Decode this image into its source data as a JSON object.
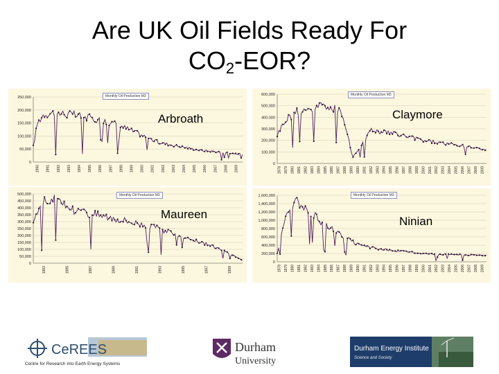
{
  "title": {
    "main": "Are UK Oil Fields Ready For",
    "line2_prefix": "CO",
    "line2_sub": "2",
    "line2_suffix": "-EOR?"
  },
  "charts": [
    {
      "id": "arbroath",
      "field": "Arbroath",
      "legend": "Monthly Oil Production M3",
      "type": "line",
      "ylim": [
        0,
        250000
      ],
      "yticks": [
        "250,000",
        "200,000",
        "150,000",
        "100,000",
        "50,000",
        "0"
      ],
      "xticks": [
        "1990",
        "1991",
        "1992",
        "1993",
        "1994",
        "1995",
        "1996",
        "1997",
        "1998",
        "1999",
        "2000",
        "2001",
        "2002",
        "2003",
        "2004",
        "2005",
        "2006",
        "2007",
        "2008",
        "2009"
      ],
      "trend": [
        [
          0,
          60000
        ],
        [
          0.02,
          150000
        ],
        [
          0.05,
          185000
        ],
        [
          0.1,
          190000
        ],
        [
          0.2,
          180000
        ],
        [
          0.3,
          165000
        ],
        [
          0.4,
          145000
        ],
        [
          0.5,
          110000
        ],
        [
          0.6,
          75000
        ],
        [
          0.7,
          60000
        ],
        [
          0.8,
          45000
        ],
        [
          0.9,
          38000
        ],
        [
          1,
          30000
        ]
      ]
    },
    {
      "id": "claymore",
      "field": "Claymore",
      "legend": "Monthly Oil Production M3",
      "type": "line",
      "ylim": [
        0,
        600000
      ],
      "yticks": [
        "600,000",
        "500,000",
        "400,000",
        "300,000",
        "200,000",
        "100,000",
        "0"
      ],
      "xticks": [
        "1978",
        "1979",
        "1980",
        "1981",
        "1982",
        "1983",
        "1984",
        "1985",
        "1986",
        "1987",
        "1988",
        "1989",
        "1990",
        "1991",
        "1992",
        "1993",
        "1994",
        "1995",
        "1996",
        "1997",
        "1998",
        "1999",
        "2000",
        "2001",
        "2002",
        "2003",
        "2004",
        "2005",
        "2006",
        "2007",
        "2008",
        "2009"
      ],
      "trend": [
        [
          0,
          250000
        ],
        [
          0.04,
          380000
        ],
        [
          0.1,
          450000
        ],
        [
          0.2,
          500000
        ],
        [
          0.3,
          470000
        ],
        [
          0.33,
          300000
        ],
        [
          0.36,
          50000
        ],
        [
          0.4,
          160000
        ],
        [
          0.45,
          290000
        ],
        [
          0.55,
          260000
        ],
        [
          0.7,
          200000
        ],
        [
          0.85,
          160000
        ],
        [
          1,
          120000
        ]
      ]
    },
    {
      "id": "maureen",
      "field": "Maureen",
      "legend": "Monthly Oil Production M3",
      "type": "line",
      "ylim": [
        0,
        500000
      ],
      "yticks": [
        "500,000",
        "450,000",
        "400,000",
        "350,000",
        "300,000",
        "250,000",
        "200,000",
        "150,000",
        "100,000",
        "50,000",
        "0"
      ],
      "xticks": [
        "1983",
        "1985",
        "1987",
        "1989",
        "1991",
        "1993",
        "1995",
        "1997",
        "1999"
      ],
      "trend": [
        [
          0,
          300000
        ],
        [
          0.04,
          450000
        ],
        [
          0.1,
          460000
        ],
        [
          0.2,
          380000
        ],
        [
          0.35,
          340000
        ],
        [
          0.5,
          290000
        ],
        [
          0.6,
          250000
        ],
        [
          0.7,
          200000
        ],
        [
          0.8,
          150000
        ],
        [
          0.9,
          100000
        ],
        [
          0.95,
          60000
        ],
        [
          1,
          20000
        ]
      ]
    },
    {
      "id": "ninian",
      "field": "Ninian",
      "legend": "Monthly Oil Production M3",
      "type": "line",
      "ylim": [
        0,
        1600000
      ],
      "yticks": [
        "1,600,000",
        "1,400,000",
        "1,200,000",
        "1,000,000",
        "800,000",
        "600,000",
        "400,000",
        "200,000",
        "0"
      ],
      "xticks": [
        "1978",
        "1979",
        "1980",
        "1981",
        "1982",
        "1983",
        "1984",
        "1985",
        "1986",
        "1987",
        "1988",
        "1989",
        "1990",
        "1991",
        "1992",
        "1993",
        "1994",
        "1995",
        "1996",
        "1997",
        "1998",
        "1999",
        "2000",
        "2001",
        "2002",
        "2003",
        "2004",
        "2005",
        "2006",
        "2007",
        "2008",
        "2009"
      ],
      "trend": [
        [
          0,
          200000
        ],
        [
          0.04,
          1100000
        ],
        [
          0.08,
          1450000
        ],
        [
          0.12,
          1400000
        ],
        [
          0.2,
          1000000
        ],
        [
          0.3,
          650000
        ],
        [
          0.4,
          380000
        ],
        [
          0.5,
          300000
        ],
        [
          0.6,
          250000
        ],
        [
          0.7,
          200000
        ],
        [
          0.85,
          170000
        ],
        [
          1,
          160000
        ]
      ]
    }
  ],
  "logos": {
    "ceress_name": "CeREES",
    "ceress_tagline": "Centre for Research into Earth Energy Systems",
    "durham_name": "Durham",
    "durham_sub": "University",
    "dei_name": "Durham Energy Institute",
    "dei_tagline": "Science and Society"
  },
  "colors": {
    "panel": "#fcf7df",
    "line": "#4d1e5b",
    "marker": "#2b1233",
    "grid": "#c8c3a8"
  }
}
